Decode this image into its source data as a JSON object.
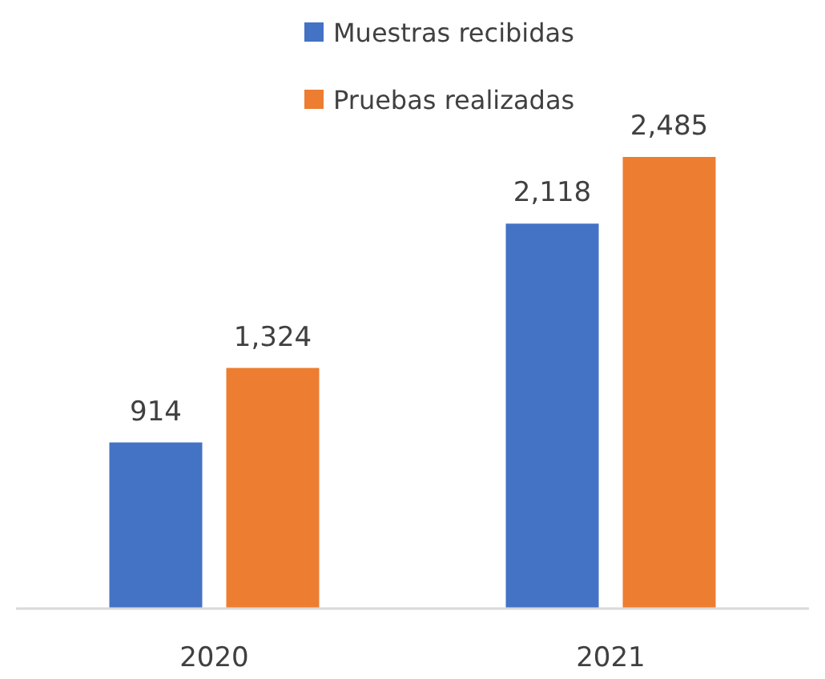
{
  "chart_data": {
    "type": "bar",
    "categories": [
      "2020",
      "2021"
    ],
    "series": [
      {
        "name": "Muestras recibidas",
        "color": "#4472c4",
        "values": [
          914,
          2118
        ],
        "value_labels": [
          "914",
          "2,118"
        ]
      },
      {
        "name": "Pruebas realizadas",
        "color": "#ed7d31",
        "values": [
          1324,
          2485
        ],
        "value_labels": [
          "1,324",
          "2,485"
        ]
      }
    ],
    "legend": "top",
    "grid": false
  }
}
